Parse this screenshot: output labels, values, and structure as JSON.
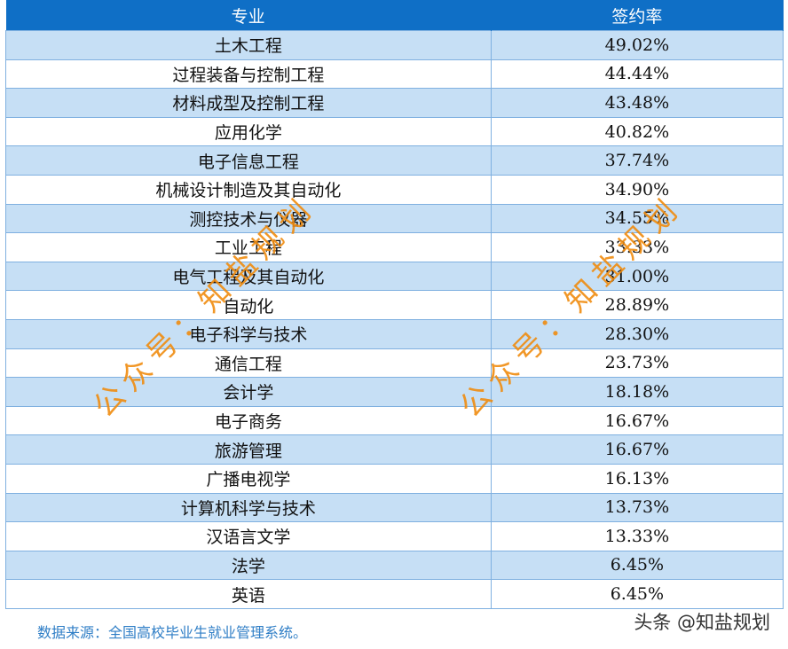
{
  "table": {
    "headers": [
      "专业",
      "签约率"
    ],
    "rows": [
      {
        "major": "土木工程",
        "rate": "49.02%"
      },
      {
        "major": "过程装备与控制工程",
        "rate": "44.44%"
      },
      {
        "major": "材料成型及控制工程",
        "rate": "43.48%"
      },
      {
        "major": "应用化学",
        "rate": "40.82%"
      },
      {
        "major": "电子信息工程",
        "rate": "37.74%"
      },
      {
        "major": "机械设计制造及其自动化",
        "rate": "34.90%"
      },
      {
        "major": "测控技术与仪器",
        "rate": "34.55%"
      },
      {
        "major": "工业工程",
        "rate": "33.33%"
      },
      {
        "major": "电气工程及其自动化",
        "rate": "31.00%"
      },
      {
        "major": "自动化",
        "rate": "28.89%"
      },
      {
        "major": "电子科学与技术",
        "rate": "28.30%"
      },
      {
        "major": "通信工程",
        "rate": "23.73%"
      },
      {
        "major": "会计学",
        "rate": "18.18%"
      },
      {
        "major": "电子商务",
        "rate": "16.67%"
      },
      {
        "major": "旅游管理",
        "rate": "16.67%"
      },
      {
        "major": "广播电视学",
        "rate": "16.13%"
      },
      {
        "major": "计算机科学与技术",
        "rate": "13.73%"
      },
      {
        "major": "汉语言文学",
        "rate": "13.33%"
      },
      {
        "major": "法学",
        "rate": "6.45%"
      },
      {
        "major": "英语",
        "rate": "6.45%"
      }
    ]
  },
  "footer": {
    "source": "数据来源：全国高校毕业生就业管理系统。",
    "brand": "头条 @知盐规划"
  },
  "watermarks": [
    "公众号：知盐规划",
    "公众号：知盐规划"
  ],
  "colors": {
    "header": "#0f6fc6",
    "stripe": "#c6dff5",
    "source_text": "#2f7ec6",
    "watermark": "#f08c10"
  }
}
